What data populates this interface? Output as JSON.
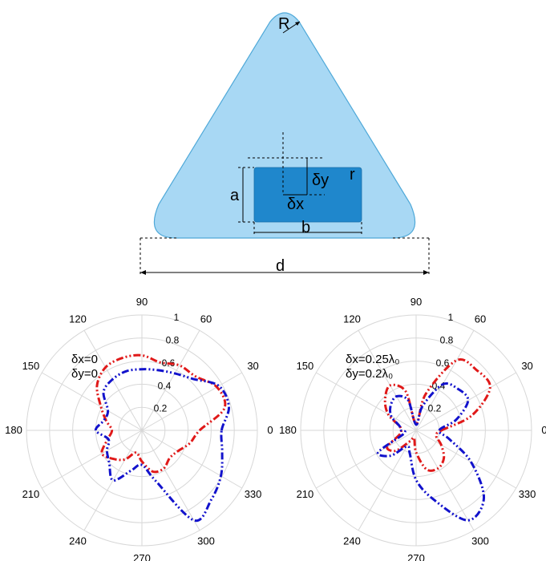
{
  "diagram": {
    "R": "R",
    "r": "r",
    "a": "a",
    "b": "b",
    "d": "d",
    "dx": "δx",
    "dy": "δy",
    "colors": {
      "triangle_fill": "#a8d8f4",
      "triangle_stroke": "#4ea8d8",
      "slot_fill": "#1f87cc"
    }
  },
  "chart_data": [
    {
      "type": "polar",
      "angle_labels": [
        "0",
        "30",
        "60",
        "90",
        "120",
        "150",
        "180",
        "210",
        "240",
        "270",
        "300",
        "330"
      ],
      "radial_labels": [
        "0.2",
        "0.4",
        "0.6",
        "0.8",
        "1"
      ],
      "rlim": [
        0,
        1
      ],
      "annotation": [
        "δx=0",
        "δy=0"
      ],
      "series": [
        {
          "color": "#e01919",
          "style": "dash-dot-dot",
          "theta": [
            0,
            15,
            30,
            45,
            60,
            75,
            90,
            105,
            120,
            135,
            150,
            165,
            180,
            195,
            210,
            225,
            240,
            255,
            270,
            285,
            300,
            315,
            330,
            345
          ],
          "r": [
            0.5,
            0.74,
            0.75,
            0.66,
            0.65,
            0.61,
            0.65,
            0.65,
            0.63,
            0.55,
            0.41,
            0.32,
            0.26,
            0.31,
            0.4,
            0.35,
            0.29,
            0.2,
            0.27,
            0.37,
            0.38,
            0.34,
            0.36,
            0.43
          ]
        },
        {
          "color": "#1212cc",
          "style": "dash-dot-dot",
          "theta": [
            0,
            15,
            30,
            45,
            60,
            75,
            90,
            105,
            120,
            135,
            150,
            165,
            180,
            195,
            210,
            225,
            240,
            255,
            270,
            285,
            300,
            315,
            330,
            345
          ],
          "r": [
            0.69,
            0.78,
            0.77,
            0.63,
            0.57,
            0.54,
            0.53,
            0.53,
            0.51,
            0.47,
            0.34,
            0.34,
            0.4,
            0.3,
            0.35,
            0.4,
            0.5,
            0.36,
            0.3,
            0.45,
            0.9,
            0.85,
            0.79,
            0.72
          ]
        }
      ]
    },
    {
      "type": "polar",
      "angle_labels": [
        "0",
        "30",
        "60",
        "90",
        "120",
        "150",
        "180",
        "210",
        "240",
        "270",
        "300",
        "330"
      ],
      "radial_labels": [
        "0.2",
        "0.4",
        "0.6",
        "0.8",
        "1"
      ],
      "rlim": [
        0,
        1
      ],
      "annotation": [
        "δx=0.25λ₀",
        "δy=0.2λ₀"
      ],
      "series": [
        {
          "color": "#e01919",
          "style": "dash-dot-dot",
          "theta": [
            0,
            15,
            30,
            45,
            60,
            75,
            90,
            105,
            120,
            135,
            150,
            165,
            180,
            195,
            210,
            225,
            240,
            255,
            270,
            285,
            300,
            315,
            330,
            345
          ],
          "r": [
            0.22,
            0.5,
            0.74,
            0.74,
            0.7,
            0.33,
            0.06,
            0.35,
            0.45,
            0.38,
            0.28,
            0.15,
            0.13,
            0.15,
            0.29,
            0.25,
            0.11,
            0.07,
            0.19,
            0.35,
            0.38,
            0.34,
            0.25,
            0.18
          ]
        },
        {
          "color": "#1212cc",
          "style": "dash-dot-dot",
          "theta": [
            0,
            15,
            30,
            45,
            60,
            75,
            90,
            105,
            120,
            135,
            150,
            165,
            180,
            195,
            210,
            225,
            240,
            255,
            270,
            285,
            300,
            315,
            330,
            345
          ],
          "r": [
            0.2,
            0.36,
            0.52,
            0.51,
            0.46,
            0.22,
            0.05,
            0.27,
            0.34,
            0.31,
            0.25,
            0.15,
            0.13,
            0.11,
            0.38,
            0.31,
            0.16,
            0.21,
            0.43,
            0.63,
            0.9,
            0.83,
            0.55,
            0.3
          ]
        }
      ]
    }
  ]
}
